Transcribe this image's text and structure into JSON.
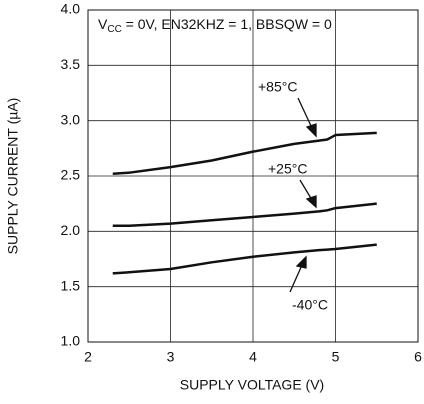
{
  "chart_data": {
    "type": "line",
    "subtitle_parts": [
      "V",
      "CC",
      " = 0V, EN32KHZ = 1, BBSQW = 0"
    ],
    "x_label": "SUPPLY VOLTAGE (V)",
    "y_label": "SUPPLY CURRENT (µA)",
    "x": [
      2.3,
      2.5,
      3,
      3.5,
      4,
      4.5,
      4.8,
      4.9,
      5,
      5.5
    ],
    "series": [
      {
        "name": "+85°C",
        "color": "#111111",
        "values": [
          2.52,
          2.53,
          2.58,
          2.64,
          2.72,
          2.79,
          2.82,
          2.83,
          2.87,
          2.89
        ]
      },
      {
        "name": "+25°C",
        "color": "#111111",
        "values": [
          2.05,
          2.05,
          2.07,
          2.1,
          2.13,
          2.16,
          2.18,
          2.19,
          2.21,
          2.25
        ]
      },
      {
        "name": "-40°C",
        "color": "#111111",
        "values": [
          1.62,
          1.63,
          1.66,
          1.72,
          1.77,
          1.81,
          1.83,
          1.835,
          1.84,
          1.88
        ]
      }
    ],
    "xlim": [
      2,
      6
    ],
    "xticks": [
      2,
      3,
      4,
      5,
      6
    ],
    "ylim": [
      1,
      4
    ],
    "yticks": [
      {
        "value": 1,
        "label": "1.0"
      },
      1.5,
      {
        "value": 2,
        "label": "2.0"
      },
      2.5,
      {
        "value": 3,
        "label": "3.0"
      },
      3.5,
      {
        "value": 4,
        "label": "4.0"
      }
    ],
    "grid": true
  }
}
